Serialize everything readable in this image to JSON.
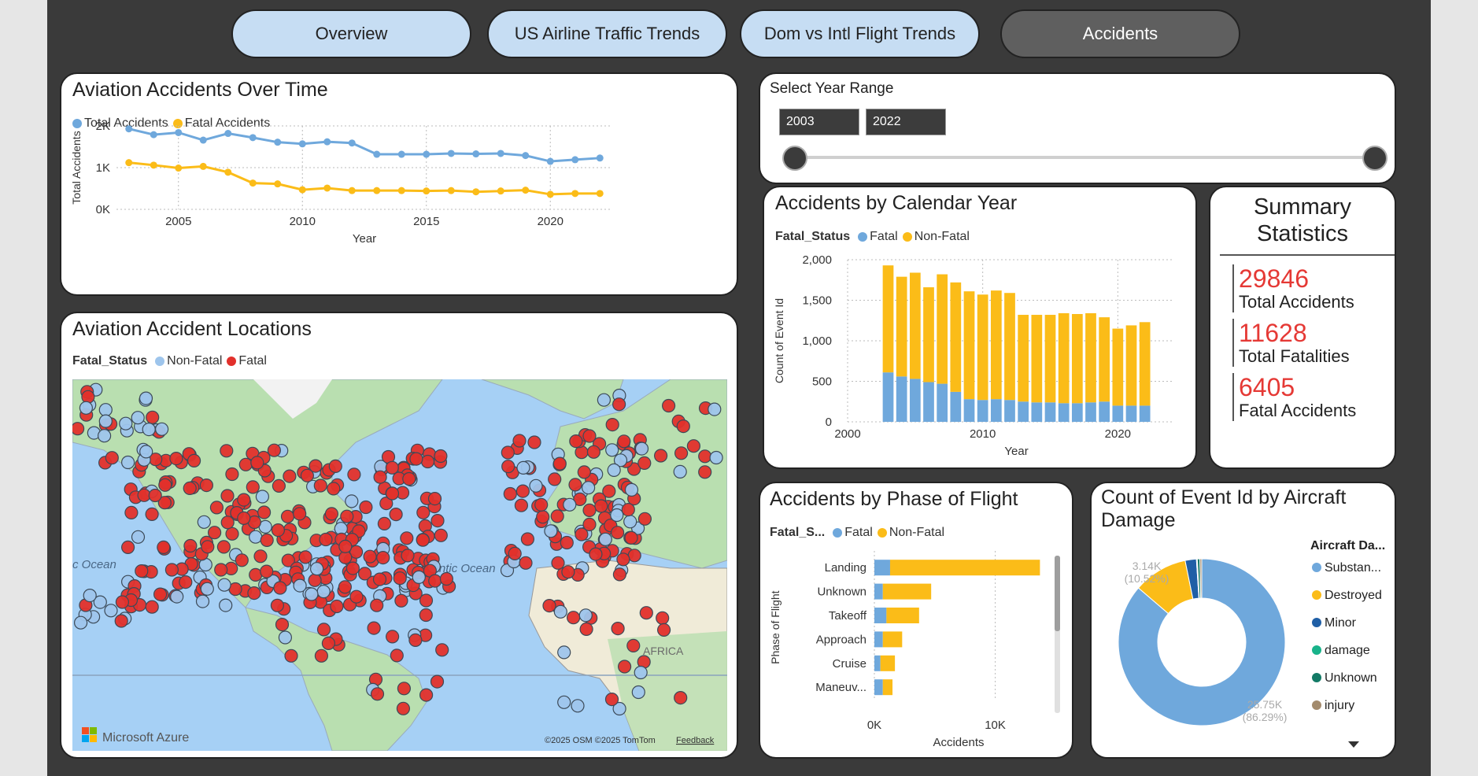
{
  "tabs": [
    {
      "label": "Overview",
      "active": false
    },
    {
      "label": "US Airline Traffic Trends",
      "active": false
    },
    {
      "label": "Dom vs Intl Flight Trends",
      "active": false
    },
    {
      "label": "Accidents",
      "active": true
    }
  ],
  "colors": {
    "blue": "#6fa8dc",
    "orange": "#fbbc18",
    "red": "#e2302b",
    "dark_blue": "#1f5fa6",
    "teal": "#18b38a",
    "dark_teal": "#137a66",
    "tan": "#a38b6d"
  },
  "time_chart": {
    "title": "Aviation Accidents Over Time",
    "legend_total": "Total Accidents",
    "legend_fatal": "Fatal Accidents",
    "ylabel": "Total Accidents",
    "xlabel": "Year",
    "y_ticks": [
      "0K",
      "1K",
      "2K"
    ],
    "x_ticks": [
      "2005",
      "2010",
      "2015",
      "2020"
    ]
  },
  "map": {
    "title": "Aviation Accident Locations",
    "legend_title": "Fatal_Status",
    "legend_nonfatal": "Non-Fatal",
    "legend_fatal": "Fatal",
    "label_ocean_left": "c Ocean",
    "label_atlantic": "Atlantic Ocean",
    "label_africa": "AFRICA",
    "brand": "Microsoft Azure",
    "copyright": "©2025 OSM  ©2025 TomTom",
    "feedback": "Feedback"
  },
  "year_range": {
    "title": "Select Year Range",
    "start": "2003",
    "end": "2022"
  },
  "calendar_chart": {
    "title": "Accidents by Calendar Year",
    "legend_title": "Fatal_Status",
    "legend_fatal": "Fatal",
    "legend_nonfatal": "Non-Fatal",
    "ylabel": "Count of Event Id",
    "xlabel": "Year",
    "y_ticks": [
      "0",
      "500",
      "1,000",
      "1,500",
      "2,000"
    ],
    "x_ticks": [
      "2000",
      "2010",
      "2020"
    ]
  },
  "summary": {
    "title": "Summary Statistics",
    "total_accidents_value": "29846",
    "total_accidents_label": "Total Accidents",
    "total_fatalities_value": "11628",
    "total_fatalities_label": "Total Fatalities",
    "fatal_accidents_value": "6405",
    "fatal_accidents_label": "Fatal Accidents"
  },
  "phase_chart": {
    "title": "Accidents by Phase of Flight",
    "legend_title": "Fatal_S...",
    "legend_fatal": "Fatal",
    "legend_nonfatal": "Non-Fatal",
    "ylabel": "Phase of Flight",
    "xlabel": "Accidents",
    "x_ticks": [
      "0K",
      "10K"
    ]
  },
  "damage_chart": {
    "title": "Count of Event Id by Aircraft Damage",
    "legend_title": "Aircraft Da...",
    "label_small": "3.14K",
    "label_small_pct": "(10.52%)",
    "label_large": "25.75K",
    "label_large_pct": "(86.29%)"
  },
  "chart_data": [
    {
      "type": "line",
      "title": "Aviation Accidents Over Time",
      "xlabel": "Year",
      "ylabel": "Total Accidents",
      "x": [
        2003,
        2004,
        2005,
        2006,
        2007,
        2008,
        2009,
        2010,
        2011,
        2012,
        2013,
        2014,
        2015,
        2016,
        2017,
        2018,
        2019,
        2020,
        2021,
        2022
      ],
      "series": [
        {
          "name": "Total Accidents",
          "values": [
            1930,
            1790,
            1840,
            1660,
            1820,
            1720,
            1610,
            1570,
            1620,
            1590,
            1320,
            1320,
            1320,
            1340,
            1330,
            1340,
            1290,
            1150,
            1190,
            1230
          ]
        },
        {
          "name": "Fatal Accidents",
          "values": [
            1120,
            1060,
            990,
            1030,
            890,
            630,
            610,
            470,
            510,
            450,
            450,
            450,
            440,
            450,
            420,
            440,
            460,
            360,
            380,
            380
          ]
        }
      ],
      "xlim": [
        2002.5,
        2022.5
      ],
      "ylim": [
        0,
        2000
      ],
      "grid": true,
      "legend": "top-left"
    },
    {
      "type": "bar",
      "title": "Accidents by Calendar Year",
      "xlabel": "Year",
      "ylabel": "Count of Event Id",
      "x": [
        2003,
        2004,
        2005,
        2006,
        2007,
        2008,
        2009,
        2010,
        2011,
        2012,
        2013,
        2014,
        2015,
        2016,
        2017,
        2018,
        2019,
        2020,
        2021,
        2022
      ],
      "series": [
        {
          "name": "Fatal",
          "values": [
            610,
            560,
            530,
            490,
            470,
            370,
            280,
            270,
            280,
            270,
            250,
            240,
            240,
            230,
            230,
            240,
            250,
            200,
            200,
            200
          ]
        },
        {
          "name": "Non-Fatal",
          "values": [
            1320,
            1230,
            1310,
            1170,
            1350,
            1350,
            1330,
            1300,
            1340,
            1320,
            1070,
            1080,
            1080,
            1110,
            1100,
            1100,
            1040,
            950,
            990,
            1030
          ]
        }
      ],
      "stacked": true,
      "xlim": [
        2000,
        2024
      ],
      "ylim": [
        0,
        2000
      ],
      "grid": true,
      "legend": "top-left"
    },
    {
      "type": "bar",
      "orientation": "horizontal",
      "title": "Accidents by Phase of Flight",
      "xlabel": "Accidents",
      "ylabel": "Phase of Flight",
      "categories": [
        "Landing",
        "Unknown",
        "Takeoff",
        "Approach",
        "Cruise",
        "Maneuv..."
      ],
      "series": [
        {
          "name": "Fatal",
          "values": [
            1300,
            700,
            1000,
            700,
            500,
            700
          ]
        },
        {
          "name": "Non-Fatal",
          "values": [
            12400,
            4000,
            2700,
            1600,
            1200,
            800
          ]
        }
      ],
      "stacked": true,
      "xlim": [
        0,
        14000
      ],
      "grid": true,
      "legend": "top-left"
    },
    {
      "type": "pie",
      "donut": true,
      "title": "Count of Event Id by Aircraft Damage",
      "categories": [
        "Substan...",
        "Destroyed",
        "Minor",
        "damage",
        "Unknown",
        "injury"
      ],
      "values": [
        25750,
        3140,
        650,
        50,
        150,
        106
      ],
      "legend": "right"
    }
  ]
}
